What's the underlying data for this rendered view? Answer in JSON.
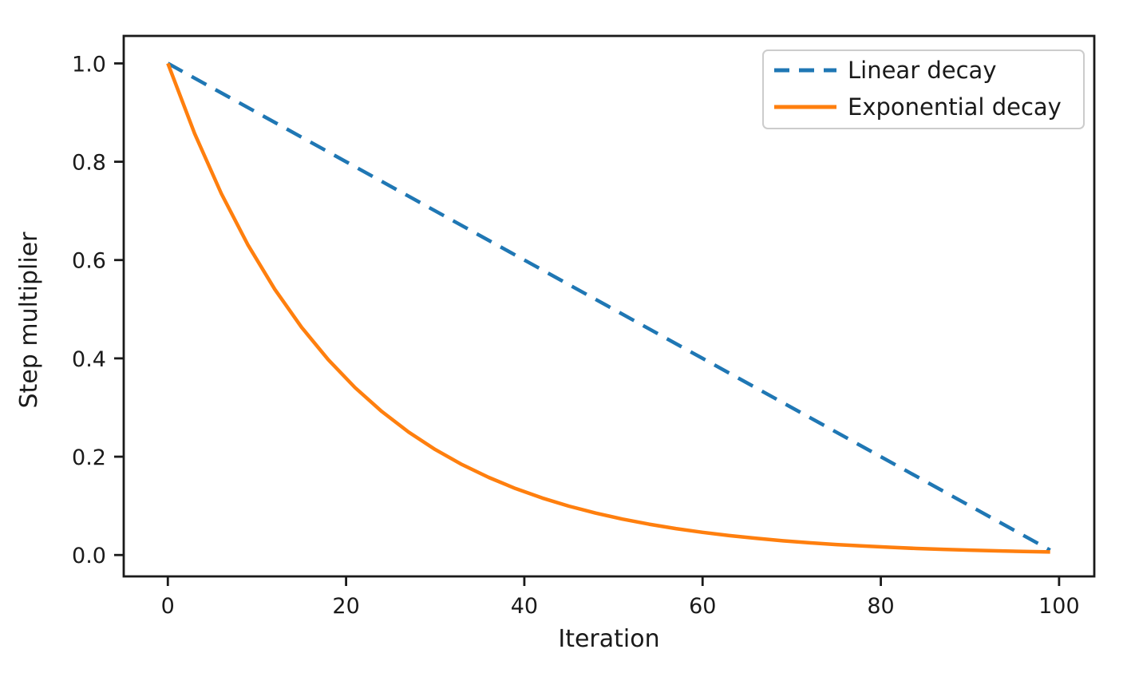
{
  "figure": {
    "background": "#ffffff"
  },
  "colors": {
    "axis": "#1a1a1a",
    "text": "#1a1a1a",
    "legend_border": "#cccccc",
    "legend_fill": "#ffffff",
    "linear_decay": "#1f77b4",
    "exponential_decay": "#ff7f0e"
  },
  "chart_data": {
    "type": "line",
    "title": "",
    "xlabel": "Iteration",
    "ylabel": "Step multiplier",
    "xlim": [
      -4.95,
      103.95
    ],
    "ylim": [
      -0.0435,
      1.0559
    ],
    "grid": false,
    "legend_position": "upper right",
    "x_ticks": [
      0,
      20,
      40,
      60,
      80,
      100
    ],
    "x_tick_labels": [
      "0",
      "20",
      "40",
      "60",
      "80",
      "100"
    ],
    "y_ticks": [
      0.0,
      0.2,
      0.4,
      0.6,
      0.8,
      1.0
    ],
    "y_tick_labels": [
      "0.0",
      "0.2",
      "0.4",
      "0.6",
      "0.8",
      "1.0"
    ],
    "series": [
      {
        "name": "Linear decay",
        "color": "#1f77b4",
        "style": "dashed",
        "x": [
          0,
          20,
          40,
          60,
          80,
          99
        ],
        "y": [
          1.0,
          0.8,
          0.6,
          0.4,
          0.2,
          0.01
        ]
      },
      {
        "name": "Exponential decay",
        "color": "#ff7f0e",
        "style": "solid",
        "x": [
          0,
          3,
          6,
          9,
          12,
          15,
          18,
          21,
          24,
          27,
          30,
          33,
          36,
          39,
          42,
          45,
          48,
          51,
          54,
          57,
          60,
          63,
          66,
          69,
          72,
          75,
          78,
          81,
          84,
          87,
          90,
          93,
          96,
          99
        ],
        "y": [
          1.0,
          0.8574,
          0.7351,
          0.6302,
          0.5404,
          0.4633,
          0.3972,
          0.3406,
          0.292,
          0.2503,
          0.2146,
          0.184,
          0.1578,
          0.1353,
          0.116,
          0.0994,
          0.0853,
          0.0731,
          0.0627,
          0.0537,
          0.0461,
          0.0395,
          0.0339,
          0.029,
          0.0249,
          0.0213,
          0.0183,
          0.0157,
          0.0134,
          0.0115,
          0.0099,
          0.0085,
          0.0073,
          0.0062
        ]
      }
    ]
  }
}
